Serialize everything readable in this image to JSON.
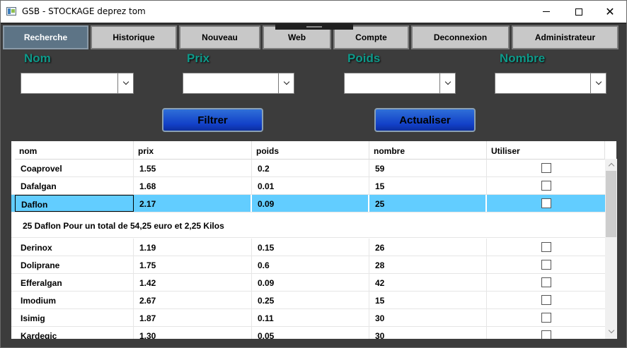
{
  "window": {
    "title": "GSB - STOCKAGE deprez tom"
  },
  "tabs": [
    {
      "label": "Recherche",
      "active": true
    },
    {
      "label": "Historique"
    },
    {
      "label": "Nouveau"
    },
    {
      "label": "Web"
    },
    {
      "label": "Compte"
    },
    {
      "label": "Deconnexion"
    },
    {
      "label": "Administrateur"
    }
  ],
  "filters": [
    {
      "label": "Nom",
      "value": ""
    },
    {
      "label": "Prix",
      "value": ""
    },
    {
      "label": "Poids",
      "value": ""
    },
    {
      "label": "Nombre",
      "value": ""
    }
  ],
  "buttons": {
    "filter": "Filtrer",
    "refresh": "Actualiser"
  },
  "grid": {
    "columns": [
      "nom",
      "prix",
      "poids",
      "nombre",
      "Utiliser"
    ],
    "rows": [
      {
        "nom": "Coaprovel",
        "prix": "1.55",
        "poids": "0.2",
        "nombre": "59",
        "utiliser": false
      },
      {
        "nom": "Dafalgan",
        "prix": "1.68",
        "poids": "0.01",
        "nombre": "15",
        "utiliser": false
      },
      {
        "nom": "Daflon",
        "prix": "2.17",
        "poids": "0.09",
        "nombre": "25",
        "utiliser": false,
        "selected": true
      },
      {
        "nom": "Derinox",
        "prix": "1.19",
        "poids": "0.15",
        "nombre": "26",
        "utiliser": false
      },
      {
        "nom": "Doliprane",
        "prix": "1.75",
        "poids": "0.6",
        "nombre": "28",
        "utiliser": false
      },
      {
        "nom": "Efferalgan",
        "prix": "1.42",
        "poids": "0.09",
        "nombre": "42",
        "utiliser": false
      },
      {
        "nom": "Imodium",
        "prix": "2.67",
        "poids": "0.25",
        "nombre": "15",
        "utiliser": false
      },
      {
        "nom": "Isimig",
        "prix": "1.87",
        "poids": "0.11",
        "nombre": "30",
        "utiliser": false
      },
      {
        "nom": "Kardegic",
        "prix": "1.30",
        "poids": "0.05",
        "nombre": "30",
        "utiliser": false
      }
    ],
    "details": "25 Daflon Pour un total de 54,25 euro et 2,25 Kilos"
  },
  "colors": {
    "accent_label": "#0e9a8a",
    "selection": "#62cdff",
    "button": "#1240c8",
    "active_tab": "#5d7486"
  }
}
